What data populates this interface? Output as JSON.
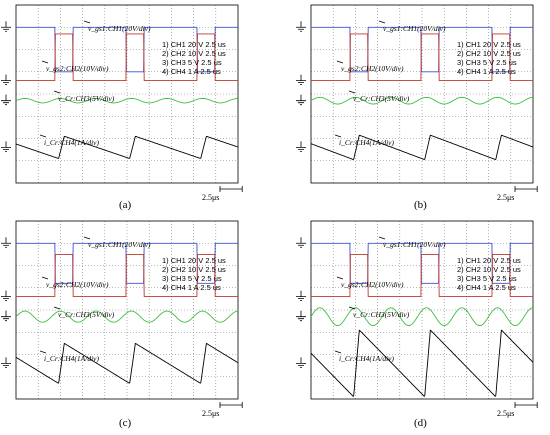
{
  "figure": {
    "time_scale": "2.5μs",
    "channel_colors": {
      "CH1": "#3a4fd0",
      "CH2": "#c0392b",
      "CH3": "#3fbf3f",
      "CH4": "#000000"
    }
  },
  "chart_data": [
    {
      "type": "line",
      "caption": "(a)",
      "time_per_div": "2.5μs",
      "settings": [
        "1) CH1  20  V    2.5 us",
        "2) CH2  10  V    2.5 us",
        "3) CH3  5  V    2.5 us",
        "4) CH4  1  A    2.5 us"
      ],
      "annotations": [
        "v_gs1:CH1(20V/div)",
        "v_gs2:CH2(10V/div)",
        "v_Cr:CH3(5V/div)",
        "i_Cr:CH4(1A/div)"
      ],
      "series": [
        {
          "channel": "CH1",
          "kind": "pulse",
          "high_fraction": 0.25,
          "period_div": 3.2,
          "amplitude": 2.0
        },
        {
          "channel": "CH2",
          "kind": "pulse",
          "high_fraction": 0.75,
          "period_div": 3.2,
          "amplitude": 2.1
        },
        {
          "channel": "CH3",
          "kind": "ripple",
          "period_div": 1.6,
          "amplitude": 0.1
        },
        {
          "channel": "CH4",
          "kind": "sawtooth",
          "period_div": 3.2,
          "amplitude": 1.0
        }
      ]
    },
    {
      "type": "line",
      "caption": "(b)",
      "time_per_div": "2.5μs",
      "settings": [
        "1) CH1  20  V    2.5 us",
        "2) CH2  10  V    2.5 us",
        "3) CH3  5  V    2.5 us",
        "4) CH4  1  A    2.5 us"
      ],
      "annotations": [
        "v_gs1:CH1(20V/div)",
        "v_gs2:CH2(10V/div)",
        "v_Cr:CH3(5V/div)",
        "i_Cr:CH4(1A/div)"
      ],
      "series": [
        {
          "channel": "CH1",
          "kind": "pulse",
          "high_fraction": 0.25,
          "period_div": 3.2,
          "amplitude": 2.0
        },
        {
          "channel": "CH2",
          "kind": "pulse",
          "high_fraction": 0.75,
          "period_div": 3.2,
          "amplitude": 2.1
        },
        {
          "channel": "CH3",
          "kind": "ripple",
          "period_div": 1.6,
          "amplitude": 0.15
        },
        {
          "channel": "CH4",
          "kind": "sawtooth",
          "period_div": 3.2,
          "amplitude": 1.1
        }
      ]
    },
    {
      "type": "line",
      "caption": "(c)",
      "time_per_div": "2.5μs",
      "settings": [
        "1) CH1  20  V    2.5 us",
        "2) CH2  10  V    2.5 us",
        "3) CH3  5  V    2.5 us",
        "4) CH4  1  A    2.5 us"
      ],
      "annotations": [
        "v_gs1:CH1(20V/div)",
        "v_gs2:CH2(10V/div)",
        "v_Cr:CH3(5V/div)",
        "i_Cr:CH4(1A/div)"
      ],
      "series": [
        {
          "channel": "CH1",
          "kind": "pulse",
          "high_fraction": 0.25,
          "period_div": 3.2,
          "amplitude": 1.8
        },
        {
          "channel": "CH2",
          "kind": "pulse",
          "high_fraction": 0.75,
          "period_div": 3.2,
          "amplitude": 1.9
        },
        {
          "channel": "CH3",
          "kind": "ripple",
          "period_div": 1.6,
          "amplitude": 0.25
        },
        {
          "channel": "CH4",
          "kind": "sawtooth",
          "period_div": 3.2,
          "amplitude": 1.8
        }
      ]
    },
    {
      "type": "line",
      "caption": "(d)",
      "time_per_div": "2.5μs",
      "settings": [
        "1) CH1  20  V    2.5 us",
        "2) CH2  10  V    2.5 us",
        "3) CH3  5  V    2.5 us",
        "4) CH4  1  A    2.5 us"
      ],
      "annotations": [
        "v_gs1:CH1(20V/div)",
        "v_gs2:CH2(10V/div)",
        "v_Cr:CH3(5V/div)",
        "i_Cr:CH4(1A/div)"
      ],
      "series": [
        {
          "channel": "CH1",
          "kind": "pulse",
          "high_fraction": 0.25,
          "period_div": 3.2,
          "amplitude": 1.8
        },
        {
          "channel": "CH2",
          "kind": "pulse",
          "high_fraction": 0.75,
          "period_div": 3.2,
          "amplitude": 1.9
        },
        {
          "channel": "CH3",
          "kind": "ripple",
          "period_div": 1.6,
          "amplitude": 0.4
        },
        {
          "channel": "CH4",
          "kind": "sawtooth",
          "period_div": 3.2,
          "amplitude": 3.0
        }
      ]
    }
  ]
}
